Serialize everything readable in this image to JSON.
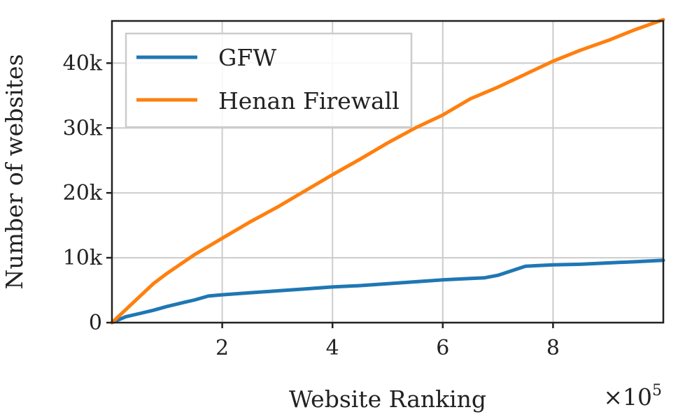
{
  "chart_data": {
    "type": "line",
    "title": "",
    "xlabel": "Website Ranking",
    "ylabel": "Number of websites",
    "x_multiplier_label": "×10",
    "x_multiplier_exp": "5",
    "xlim": [
      0,
      1000000
    ],
    "ylim": [
      0,
      46500
    ],
    "x_ticks": [
      200000,
      400000,
      600000,
      800000
    ],
    "x_tick_labels": [
      "2",
      "4",
      "6",
      "8"
    ],
    "y_ticks": [
      0,
      10000,
      20000,
      30000,
      40000
    ],
    "y_tick_labels": [
      "0",
      "10k",
      "20k",
      "30k",
      "40k"
    ],
    "grid": true,
    "legend_position": "top-left",
    "series": [
      {
        "name": "GFW",
        "color": "#1f77b4",
        "x": [
          0,
          25000,
          50000,
          75000,
          100000,
          125000,
          150000,
          175000,
          200000,
          250000,
          300000,
          350000,
          400000,
          450000,
          500000,
          550000,
          600000,
          650000,
          675000,
          700000,
          725000,
          750000,
          800000,
          850000,
          900000,
          950000,
          1000000
        ],
        "y": [
          0,
          900,
          1400,
          1900,
          2500,
          3000,
          3500,
          4100,
          4300,
          4600,
          4900,
          5200,
          5500,
          5700,
          6000,
          6300,
          6600,
          6800,
          6900,
          7300,
          8000,
          8700,
          8900,
          9000,
          9200,
          9400,
          9600
        ]
      },
      {
        "name": "Henan Firewall",
        "color": "#ff7f0e",
        "x": [
          0,
          25000,
          50000,
          75000,
          100000,
          150000,
          200000,
          250000,
          300000,
          350000,
          400000,
          450000,
          500000,
          550000,
          600000,
          650000,
          700000,
          750000,
          800000,
          850000,
          900000,
          950000,
          1000000
        ],
        "y": [
          0,
          2000,
          4000,
          6000,
          7600,
          10500,
          13000,
          15500,
          17800,
          20300,
          22800,
          25200,
          27700,
          30000,
          32000,
          34500,
          36300,
          38300,
          40300,
          42000,
          43500,
          45200,
          46700
        ]
      }
    ]
  }
}
